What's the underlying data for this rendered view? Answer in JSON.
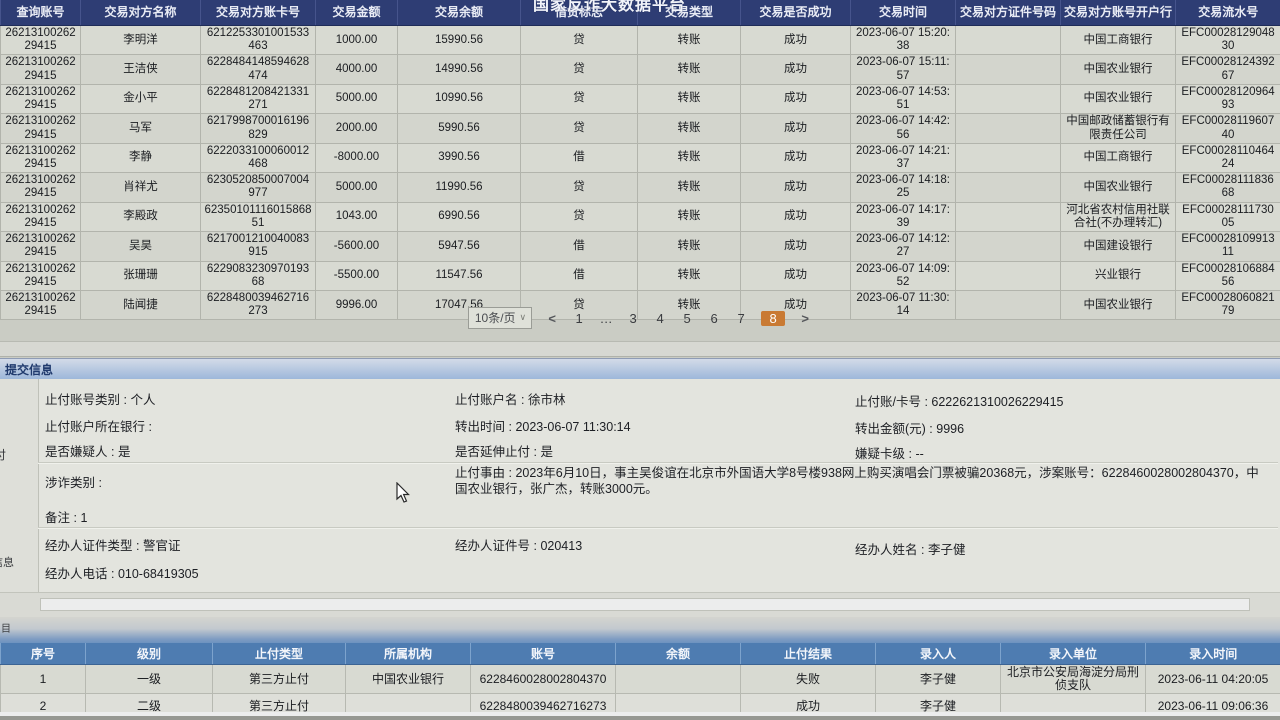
{
  "platform_title": "国家反诈大数据平台",
  "ui": {
    "colon": " : ",
    "page_size_caret": "∨"
  },
  "top_table": {
    "columns": [
      "查询账号",
      "交易对方名称",
      "交易对方账卡号",
      "交易金额",
      "交易余额",
      "借贷标志",
      "交易类型",
      "交易是否成功",
      "交易时间",
      "交易对方证件号码",
      "交易对方账号开户行",
      "交易流水号"
    ],
    "rows": [
      [
        "2621310026229415",
        "李明洋",
        "6212253301001533463",
        "1000.00",
        "15990.56",
        "贷",
        "转账",
        "成功",
        "2023-06-07 15:20:38",
        "",
        "中国工商银行",
        "EFC0002812904830"
      ],
      [
        "2621310026229415",
        "王洁侠",
        "6228484148594628474",
        "4000.00",
        "14990.56",
        "贷",
        "转账",
        "成功",
        "2023-06-07 15:11:57",
        "",
        "中国农业银行",
        "EFC0002812439267"
      ],
      [
        "2621310026229415",
        "金小平",
        "6228481208421331271",
        "5000.00",
        "10990.56",
        "贷",
        "转账",
        "成功",
        "2023-06-07 14:53:51",
        "",
        "中国农业银行",
        "EFC0002812096493"
      ],
      [
        "2621310026229415",
        "马军",
        "6217998700016196829",
        "2000.00",
        "5990.56",
        "贷",
        "转账",
        "成功",
        "2023-06-07 14:42:56",
        "",
        "中国邮政储蓄银行有限责任公司",
        "EFC0002811960740"
      ],
      [
        "2621310026229415",
        "李静",
        "6222033100060012468",
        "-8000.00",
        "3990.56",
        "借",
        "转账",
        "成功",
        "2023-06-07 14:21:37",
        "",
        "中国工商银行",
        "EFC0002811046424"
      ],
      [
        "2621310026229415",
        "肖祥尤",
        "6230520850007004977",
        "5000.00",
        "11990.56",
        "贷",
        "转账",
        "成功",
        "2023-06-07 14:18:25",
        "",
        "中国农业银行",
        "EFC0002811183668"
      ],
      [
        "2621310026229415",
        "李殿政",
        "6235010111601586851",
        "1043.00",
        "6990.56",
        "贷",
        "转账",
        "成功",
        "2023-06-07 14:17:39",
        "",
        "河北省农村信用社联合社(不办理转汇)",
        "EFC0002811173005"
      ],
      [
        "2621310026229415",
        "吴昊",
        "6217001210040083915",
        "-5600.00",
        "5947.56",
        "借",
        "转账",
        "成功",
        "2023-06-07 14:12:27",
        "",
        "中国建设银行",
        "EFC0002810991311"
      ],
      [
        "2621310026229415",
        "张珊珊",
        "622908323097019368",
        "-5500.00",
        "11547.56",
        "借",
        "转账",
        "成功",
        "2023-06-07 14:09:52",
        "",
        "兴业银行",
        "EFC0002810688456"
      ],
      [
        "2621310026229415",
        "陆闻捷",
        "6228480039462716273",
        "9996.00",
        "17047.56",
        "贷",
        "转账",
        "成功",
        "2023-06-07 11:30:14",
        "",
        "中国农业银行",
        "EFC0002806082179"
      ]
    ]
  },
  "pagination": {
    "page_size": "10条/页",
    "prev": "<",
    "pages": [
      "1",
      "…",
      "3",
      "4",
      "5",
      "6",
      "7",
      "8"
    ],
    "active_page": "8",
    "next": ">"
  },
  "submit_section": {
    "title": "提交信息",
    "fields": [
      {
        "label": "止付账号类别",
        "value": "个人",
        "pos": "r1c1"
      },
      {
        "label": "止付账户名",
        "value": "徐市林",
        "pos": "r1c2"
      },
      {
        "label": "止付账/卡号",
        "value": "6222621310026229415",
        "pos": "r1c3"
      },
      {
        "label": "止付账户所在银行",
        "value": "",
        "pos": "r2c1"
      },
      {
        "label": "转出时间",
        "value": "2023-06-07 11:30:14",
        "pos": "r2c2"
      },
      {
        "label": "转出金额(元)",
        "value": "9996",
        "pos": "r2c3"
      },
      {
        "label": "是否嫌疑人",
        "value": "是",
        "pos": "r3c1"
      },
      {
        "label": "是否延伸止付",
        "value": "是",
        "pos": "r3c2"
      },
      {
        "label": "嫌疑卡级",
        "value": "--",
        "pos": "r3c3"
      },
      {
        "label": "涉诈类别",
        "value": "",
        "pos": "r4c1"
      },
      {
        "label": "止付事由",
        "value": "2023年6月10日，事主吴俊谊在北京市外国语大学8号楼938网上购买演唱会门票被骗20368元，涉案账号：6228460028002804370，中国农业银行，张广杰，转账3000元。",
        "pos": "r4c2wide"
      },
      {
        "label": "备注",
        "value": "1",
        "pos": "r5c1"
      },
      {
        "label": "经办人证件类型",
        "value": "警官证",
        "pos": "r6c1"
      },
      {
        "label": "经办人证件号",
        "value": "020413",
        "pos": "r6c2"
      },
      {
        "label": "经办人姓名",
        "value": "李子健",
        "pos": "r6c3"
      },
      {
        "label": "经办人电话",
        "value": "010-68419305",
        "pos": "r7c1"
      }
    ]
  },
  "bottom_table": {
    "columns": [
      "序号",
      "级别",
      "止付类型",
      "所属机构",
      "账号",
      "余额",
      "止付结果",
      "录入人",
      "录入单位",
      "录入时间"
    ],
    "rows": [
      [
        "1",
        "一级",
        "第三方止付",
        "中国农业银行",
        "6228460028002804370",
        "",
        "失败",
        "李子健",
        "北京市公安局海淀分局刑侦支队",
        "2023-06-11 04:20:05"
      ],
      [
        "2",
        "二级",
        "第三方止付",
        "",
        "6228480039462716273",
        "",
        "成功",
        "李子健",
        "",
        "2023-06-11 09:06:36"
      ]
    ]
  },
  "edge_fragments": {
    "f1": "付",
    "f2": "信息",
    "f3": "目"
  },
  "colors": {
    "header_navy": "#2e3d74",
    "bottom_header_blue": "#4e7cb1",
    "active_page_orange": "#c97a33",
    "row_bg": "#d8dad2"
  }
}
